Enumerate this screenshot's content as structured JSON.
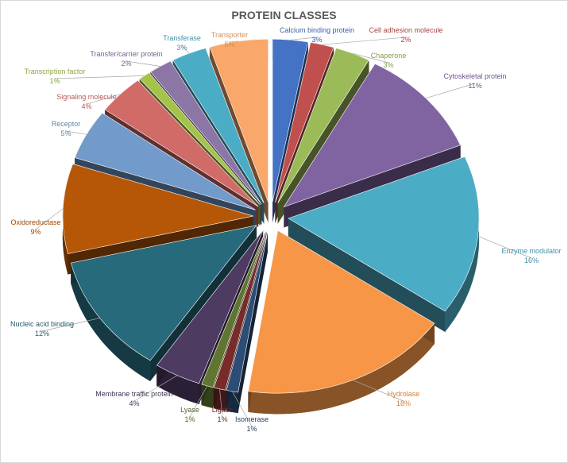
{
  "chart_data": {
    "type": "pie",
    "title": "PROTEIN CLASSES",
    "slices": [
      {
        "name": "Calcium binding protein",
        "value": 3,
        "label": "3%",
        "color": "#4472c4"
      },
      {
        "name": "Cell adhesion molecule",
        "value": 2,
        "label": "2%",
        "color": "#c0504d"
      },
      {
        "name": "Chaperone",
        "value": 3,
        "label": "3%",
        "color": "#9bbb59"
      },
      {
        "name": "Cytoskeletal protein",
        "value": 11,
        "label": "11%",
        "color": "#8064a2"
      },
      {
        "name": "Enzyme modulator",
        "value": 16,
        "label": "16%",
        "color": "#4bacc6"
      },
      {
        "name": "Hydrolase",
        "value": 18,
        "label": "18%",
        "color": "#f79646"
      },
      {
        "name": "Isomerase",
        "value": 1,
        "label": "1%",
        "color": "#2c4d75"
      },
      {
        "name": "Ligase",
        "value": 1,
        "label": "1%",
        "color": "#772c2a"
      },
      {
        "name": "Lyase",
        "value": 1,
        "label": "1%",
        "color": "#5f7530"
      },
      {
        "name": "Membrane traffic protein",
        "value": 4,
        "label": "4%",
        "color": "#4d3b62"
      },
      {
        "name": "Nucleic acid binding",
        "value": 12,
        "label": "12%",
        "color": "#276a7c"
      },
      {
        "name": "Oxidoreductase",
        "value": 9,
        "label": "9%",
        "color": "#b65708"
      },
      {
        "name": "Receptor",
        "value": 5,
        "label": "5%",
        "color": "#729aca"
      },
      {
        "name": "Signaling molecule",
        "value": 4,
        "label": "4%",
        "color": "#d16b68"
      },
      {
        "name": "Transcription factor",
        "value": 1,
        "label": "1%",
        "color": "#a5c249"
      },
      {
        "name": "Transfer/carrier protein",
        "value": 2,
        "label": "2%",
        "color": "#8b76a5"
      },
      {
        "name": "Transferase",
        "value": 3,
        "label": "3%",
        "color": "#4bacc6"
      },
      {
        "name": "Transporter",
        "value": 5,
        "label": "5%",
        "color": "#f9a76a"
      }
    ]
  }
}
